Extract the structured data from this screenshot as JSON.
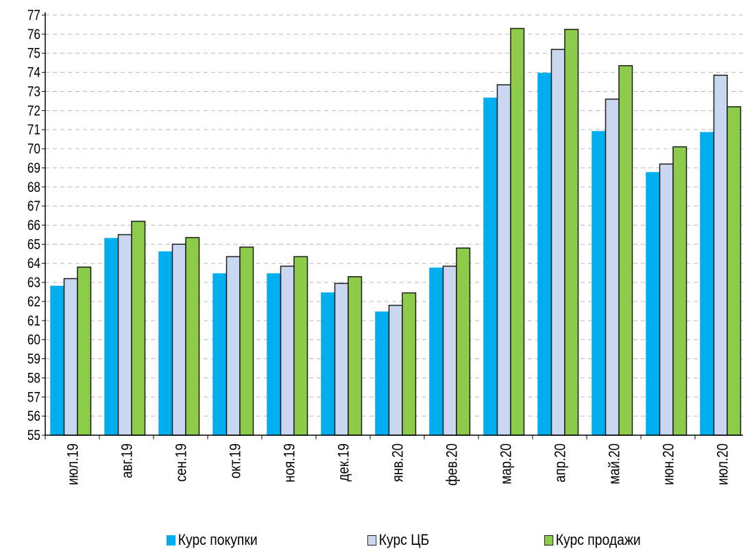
{
  "chart_data": {
    "type": "bar",
    "categories": [
      "июл.19",
      "авг.19",
      "сен.19",
      "окт.19",
      "ноя.19",
      "дек.19",
      "янв.20",
      "фев.20",
      "мар.20",
      "апр.20",
      "май.20",
      "июн.20",
      "июл.20"
    ],
    "series": [
      {
        "name": "Курс покупки",
        "color": "#00aeef",
        "outline": "#00aeef",
        "values": [
          62.8,
          65.3,
          64.6,
          63.45,
          63.45,
          62.45,
          61.45,
          63.75,
          72.65,
          73.95,
          70.9,
          68.75,
          70.85
        ]
      },
      {
        "name": "Курс ЦБ",
        "color": "#c9d7f0",
        "outline": "#1a1a1a",
        "values": [
          63.2,
          65.5,
          65.0,
          64.35,
          63.85,
          62.95,
          61.8,
          63.85,
          73.35,
          75.2,
          72.6,
          69.2,
          73.85
        ]
      },
      {
        "name": "Курс продажи",
        "color": "#8ccc4a",
        "outline": "#1a1a1a",
        "values": [
          63.8,
          66.2,
          65.35,
          64.85,
          64.35,
          63.3,
          62.45,
          64.8,
          76.3,
          76.25,
          74.35,
          70.1,
          72.2
        ]
      }
    ],
    "title": "",
    "xlabel": "",
    "ylabel": "",
    "ylim": [
      55,
      77
    ],
    "yticks": [
      "55",
      "56",
      "57",
      "58",
      "59",
      "60",
      "61",
      "62",
      "63",
      "64",
      "65",
      "66",
      "67",
      "68",
      "69",
      "70",
      "71",
      "72",
      "73",
      "74",
      "75",
      "76",
      "77"
    ],
    "grid": true,
    "legend_position": "bottom"
  }
}
